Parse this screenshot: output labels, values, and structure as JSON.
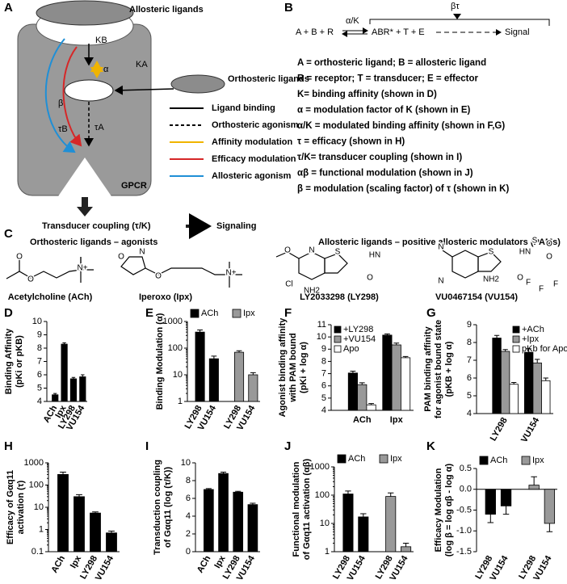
{
  "panel_a": {
    "letter": "A",
    "allosteric_ligands": "Allosteric ligands",
    "kb": "KB",
    "alpha": "α",
    "ka": "KA",
    "beta": "β",
    "taub": "τB",
    "taua": "τA",
    "orthosteric_ligands": "Orthosteric ligands",
    "gpcr": "GPCR",
    "legend": [
      "Ligand binding",
      "Orthosteric agonism",
      "Affinity modulation",
      "Efficacy modulation",
      "Allosteric agonism"
    ],
    "transducer": "Transducer coupling (τ/K)",
    "signaling": "Signaling"
  },
  "panel_b": {
    "letter": "B",
    "reactants": "A + B + R",
    "ak": "α/K",
    "complex": "ABR* + T + E",
    "bt": "βτ",
    "signal": "Signal",
    "definitions": [
      "A = orthosteric ligand; B = allosteric ligand",
      "R = receptor; T = transducer; E = effector",
      "K= binding affinity (shown in D)",
      "α = modulation factor of K (shown in E)",
      "α/K = modulated binding affinity (shown in F,G)",
      "τ = efficacy (shown in H)",
      "τ/K= transducer coupling (shown in I)",
      "αβ = functional modulation (shown in J)",
      "β = modulation (scaling factor) of τ (shown in K)"
    ]
  },
  "panel_c": {
    "letter": "C",
    "orthosteric_title": "Orthosteric ligands – agonists",
    "allosteric_title": "Allosteric ligands – positive allosteric modulators (PAMs)",
    "molecules": [
      {
        "name": "Acetylcholine (ACh)",
        "atoms": [
          "O",
          "O",
          "N+"
        ]
      },
      {
        "name": "Iperoxo (Ipx)",
        "atoms": [
          "O",
          "N",
          "O",
          "N+"
        ]
      },
      {
        "name": "LY2033298 (LY298)",
        "atoms": [
          "O",
          "N",
          "S",
          "Cl",
          "NH2",
          "O",
          "HN"
        ]
      },
      {
        "name": "VU0467154 (VU154)",
        "atoms": [
          "N",
          "N",
          "S",
          "NH2",
          "O",
          "HN",
          "S",
          "O",
          "O",
          "F",
          "F",
          "F"
        ]
      }
    ]
  },
  "charts": [
    {
      "letter": "D",
      "type": "bar",
      "ylabel": [
        "Binding Affinity",
        "(pKi or pKB)"
      ],
      "categories": [
        "ACh",
        "Ipx",
        "LY298",
        "VU154"
      ],
      "values": [
        4.5,
        8.3,
        5.7,
        5.85
      ],
      "errors": [
        0.1,
        0.1,
        0.1,
        0.15
      ],
      "color": "#000000",
      "ylim": [
        4,
        10
      ],
      "yticks": [
        4,
        5,
        6,
        7,
        8,
        9,
        10
      ],
      "log": false
    },
    {
      "letter": "E",
      "type": "bar",
      "ylabel": [
        "Binding Modulation (α)"
      ],
      "categories": [
        "LY298",
        "VU154",
        "LY298",
        "VU154"
      ],
      "series": [
        {
          "name": "ACh",
          "color": "#000000",
          "values": [
            400,
            40,
            null,
            null
          ],
          "errors": [
            80,
            10,
            null,
            null
          ]
        },
        {
          "name": "Ipx",
          "color": "#999999",
          "values": [
            null,
            null,
            70,
            10
          ],
          "errors": [
            null,
            null,
            10,
            2
          ]
        }
      ],
      "ylim": [
        1,
        1000
      ],
      "yticks": [
        1,
        10,
        100,
        1000
      ],
      "log": true,
      "legend": "above"
    },
    {
      "letter": "F",
      "type": "bar",
      "ylabel": [
        "Agonist binding affinity",
        "with PAM bound",
        "(pKi + log α)"
      ],
      "categories": [
        "ACh",
        "Ipx"
      ],
      "series": [
        {
          "name": "+LY298",
          "color": "#000000",
          "values": [
            7.05,
            10.15
          ],
          "errors": [
            0.15,
            0.1
          ]
        },
        {
          "name": "+VU154",
          "color": "#999999",
          "values": [
            6.1,
            9.35
          ],
          "errors": [
            0.15,
            0.15
          ]
        },
        {
          "name": "Apo",
          "color": "#ffffff",
          "values": [
            4.45,
            8.3
          ],
          "errors": [
            0.1,
            0.1
          ]
        }
      ],
      "ylim": [
        4,
        11
      ],
      "yticks": [
        4,
        5,
        6,
        7,
        8,
        9,
        10,
        11
      ],
      "log": false,
      "legend": "inside-left"
    },
    {
      "letter": "G",
      "type": "bar",
      "ylabel": [
        "PAM binding affinity",
        "for agonist bound state",
        "(pKB + log α)"
      ],
      "categories": [
        "LY298",
        "VU154"
      ],
      "series": [
        {
          "name": "+ACh",
          "color": "#000000",
          "values": [
            8.25,
            7.45
          ],
          "errors": [
            0.15,
            0.2
          ]
        },
        {
          "name": "+Ipx",
          "color": "#999999",
          "values": [
            7.5,
            6.85
          ],
          "errors": [
            0.1,
            0.2
          ]
        },
        {
          "name": "pKb for Apo",
          "color": "#ffffff",
          "values": [
            5.65,
            5.85
          ],
          "errors": [
            0.1,
            0.15
          ]
        }
      ],
      "ylim": [
        4,
        9
      ],
      "yticks": [
        4,
        5,
        6,
        7,
        8,
        9
      ],
      "log": false,
      "legend": "inside-right"
    },
    {
      "letter": "H",
      "type": "bar",
      "ylabel": [
        "Efficacy of Gαq11",
        "activation (τ)"
      ],
      "categories": [
        "ACh",
        "Ipx",
        "LY298",
        "VU154"
      ],
      "values": [
        300,
        30,
        5.5,
        0.7
      ],
      "errors": [
        80,
        7,
        0.7,
        0.15
      ],
      "color": "#000000",
      "ylim": [
        0.1,
        1000
      ],
      "yticks": [
        0.1,
        1,
        10,
        100,
        1000
      ],
      "log": true
    },
    {
      "letter": "I",
      "type": "bar",
      "ylabel": [
        "Transduction coupling",
        "of Gαq11 (log (τ/K))"
      ],
      "categories": [
        "ACh",
        "Ipx",
        "LY298",
        "VU154"
      ],
      "values": [
        7.0,
        8.8,
        6.7,
        5.3
      ],
      "errors": [
        0.1,
        0.15,
        0.1,
        0.15
      ],
      "color": "#000000",
      "ylim": [
        0,
        10
      ],
      "yticks": [
        0,
        2,
        4,
        6,
        8,
        10
      ],
      "log": false
    },
    {
      "letter": "J",
      "type": "bar",
      "ylabel": [
        "Functional modulation",
        "of Gαq11 activation (αβ)"
      ],
      "categories": [
        "LY298",
        "VU154",
        "LY298",
        "VU154"
      ],
      "series": [
        {
          "name": "ACh",
          "color": "#000000",
          "values": [
            110,
            17,
            null,
            null
          ],
          "errors": [
            30,
            5,
            null,
            null
          ]
        },
        {
          "name": "Ipx",
          "color": "#999999",
          "values": [
            null,
            null,
            90,
            1.5
          ],
          "errors": [
            null,
            null,
            30,
            0.5
          ]
        }
      ],
      "ylim": [
        1,
        1000
      ],
      "yticks": [
        1,
        10,
        100,
        1000
      ],
      "log": true,
      "legend": "above"
    },
    {
      "letter": "K",
      "type": "bar",
      "ylabel": [
        "Efficacy Modulation",
        "(log β = log αβ - log α)"
      ],
      "categories": [
        "LY298",
        "VU154",
        "LY298",
        "VU154"
      ],
      "series": [
        {
          "name": "ACh",
          "color": "#000000",
          "values": [
            -0.6,
            -0.4,
            null,
            null
          ],
          "errors": [
            0.2,
            0.2,
            null,
            null
          ]
        },
        {
          "name": "Ipx",
          "color": "#999999",
          "values": [
            null,
            null,
            0.1,
            -0.82
          ],
          "errors": [
            null,
            null,
            0.2,
            0.2
          ]
        }
      ],
      "ylim": [
        -1.5,
        0.5
      ],
      "yticks": [
        -1.5,
        {
          "value": -1,
          "label": "-1.0"
        },
        -0.5,
        {
          "value": 0,
          "label": "0.0"
        },
        0.5
      ],
      "log": false,
      "legend": "above"
    }
  ]
}
